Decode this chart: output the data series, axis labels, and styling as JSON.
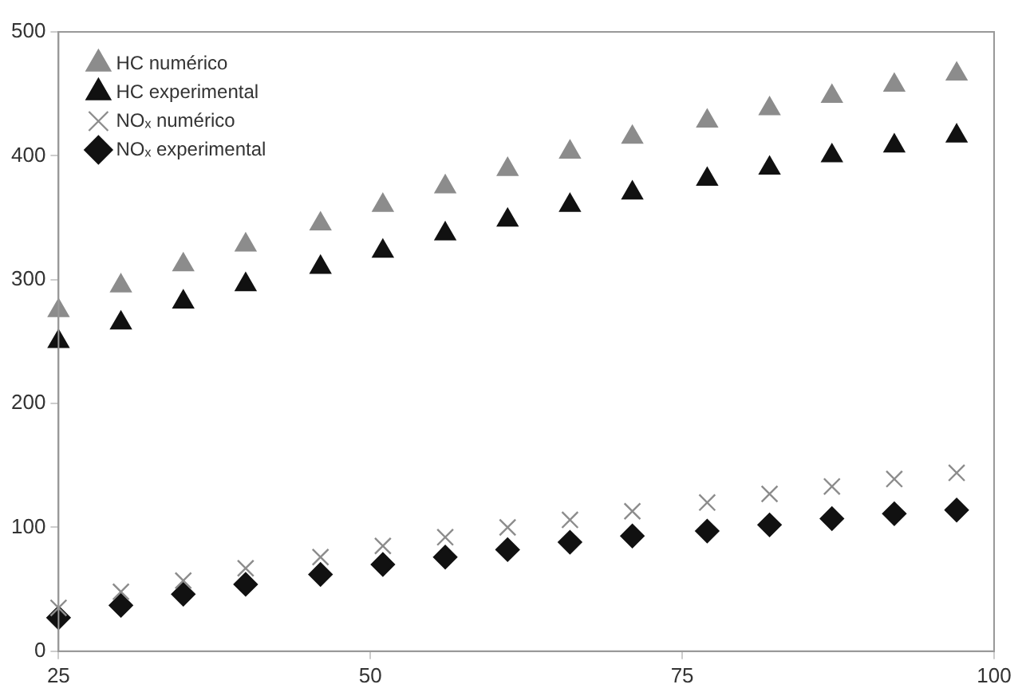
{
  "chart_data": {
    "type": "scatter",
    "x": [
      25,
      30,
      35,
      40,
      46,
      51,
      56,
      61,
      66,
      71,
      77,
      82,
      87,
      92,
      97
    ],
    "series": [
      {
        "name": "HC numérico",
        "color": "#8c8c8c",
        "marker": "triangle",
        "values": [
          275,
          295,
          312,
          328,
          345,
          360,
          375,
          389,
          403,
          415,
          428,
          438,
          448,
          457,
          466
        ]
      },
      {
        "name": "HC experimental",
        "color": "#111111",
        "marker": "triangle",
        "values": [
          250,
          265,
          282,
          296,
          310,
          323,
          337,
          348,
          360,
          370,
          381,
          390,
          400,
          408,
          416
        ]
      },
      {
        "name": "NOₓ numérico",
        "color": "#8c8c8c",
        "marker": "cross",
        "values": [
          35,
          48,
          57,
          67,
          76,
          85,
          92,
          100,
          106,
          113,
          120,
          127,
          133,
          139,
          144
        ]
      },
      {
        "name": "NOₓ experimental",
        "color": "#111111",
        "marker": "diamond",
        "values": [
          27,
          37,
          46,
          54,
          62,
          70,
          76,
          82,
          88,
          93,
          97,
          102,
          107,
          111,
          114
        ]
      }
    ],
    "xlim": [
      25,
      100
    ],
    "xticks": [
      25,
      50,
      75,
      100
    ],
    "ylim": [
      0,
      500
    ],
    "yticks": [
      0,
      100,
      200,
      300,
      400,
      500
    ],
    "grid": false,
    "legend": "top left"
  }
}
